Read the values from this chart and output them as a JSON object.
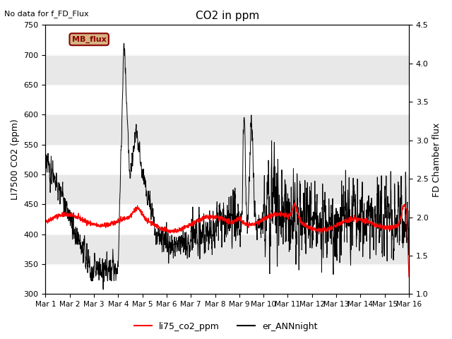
{
  "title": "CO2 in ppm",
  "top_left_text": "No data for f_FD_Flux",
  "ylabel_left": "LI7500 CO2 (ppm)",
  "ylabel_right": "FD Chamber flux",
  "ylim_left": [
    300,
    750
  ],
  "ylim_right": [
    1.0,
    4.5
  ],
  "yticks_left": [
    300,
    350,
    400,
    450,
    500,
    550,
    600,
    650,
    700,
    750
  ],
  "yticks_right": [
    1.0,
    1.5,
    2.0,
    2.5,
    3.0,
    3.5,
    4.0,
    4.5
  ],
  "xtick_labels": [
    "Mar 1",
    "Mar 2",
    "Mar 3",
    "Mar 4",
    "Mar 5",
    "Mar 6",
    "Mar 7",
    "Mar 8",
    "Mar 9",
    "Mar 10",
    "Mar 11",
    "Mar 12",
    "Mar 13",
    "Mar 14",
    "Mar 15",
    "Mar 16"
  ],
  "legend_labels": [
    "li75_co2_ppm",
    "er_ANNnight"
  ],
  "legend_colors": [
    "red",
    "black"
  ],
  "mb_flux_box_color": "#d4b483",
  "background_band_color": "#e8e8e8",
  "band_ranges": [
    [
      350,
      400
    ],
    [
      450,
      500
    ],
    [
      550,
      600
    ],
    [
      650,
      700
    ]
  ],
  "n_points": 2304,
  "days": 15
}
